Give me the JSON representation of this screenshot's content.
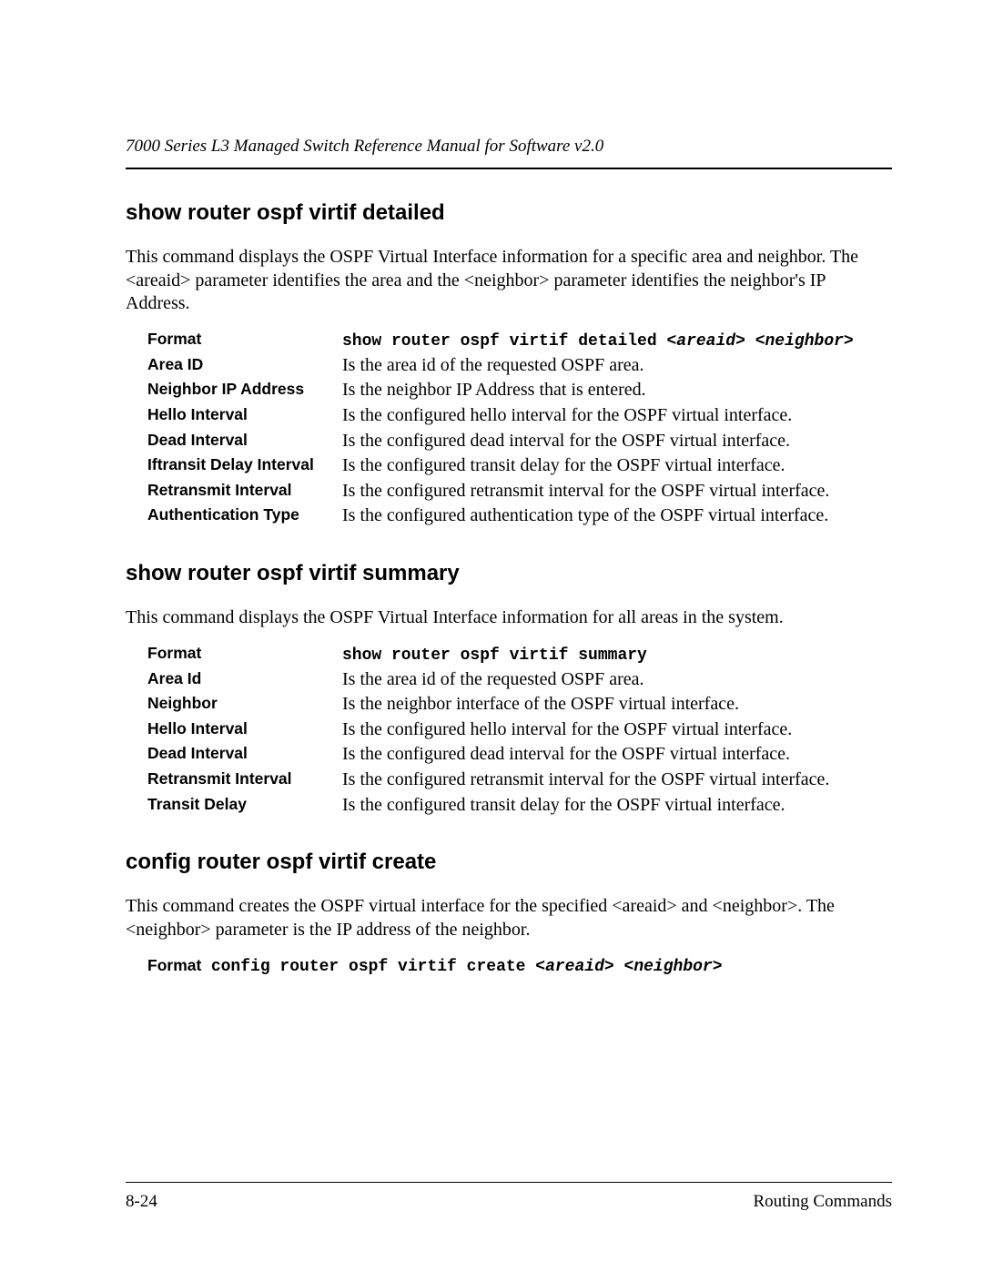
{
  "header": {
    "running_head": "7000 Series L3 Managed Switch Reference Manual for Software v2.0"
  },
  "sections": {
    "detailed": {
      "title": "show router ospf virtif detailed",
      "intro": "This command displays the OSPF Virtual Interface information for a specific area and neighbor. The <areaid> parameter identifies the area and the <neighbor> parameter identifies the neighbor's IP Address.",
      "rows": {
        "format_label": "Format",
        "format_cmd": "show router ospf virtif detailed ",
        "format_arg1": "<areaid>",
        "format_arg2": "<neighbor>",
        "area_id_label": "Area ID",
        "area_id_value": "Is the area id of the requested OSPF area.",
        "neighbor_ip_label": "Neighbor IP Address",
        "neighbor_ip_value": "Is the neighbor IP Address that is entered.",
        "hello_label": "Hello Interval",
        "hello_value": "Is the configured hello interval for the OSPF virtual interface.",
        "dead_label": "Dead Interval",
        "dead_value": "Is the configured dead interval for the OSPF virtual interface.",
        "iftransit_label": "Iftransit Delay Interval",
        "iftransit_value": "Is the configured transit delay for the OSPF virtual interface.",
        "retransmit_label": "Retransmit Interval",
        "retransmit_value": "Is the configured retransmit interval for the OSPF virtual interface.",
        "auth_label": "Authentication Type",
        "auth_value": "Is the configured authentication type of the OSPF virtual interface."
      }
    },
    "summary": {
      "title": "show router ospf virtif summary",
      "intro": "This command displays the OSPF Virtual Interface information for all areas in the system.",
      "rows": {
        "format_label": "Format",
        "format_cmd": "show router ospf virtif summary",
        "area_id_label": "Area Id",
        "area_id_value": "Is the area id of the requested OSPF area.",
        "neighbor_label": "Neighbor",
        "neighbor_value": "Is the neighbor interface of the OSPF virtual interface.",
        "hello_label": "Hello Interval",
        "hello_value": "Is the configured hello interval for the OSPF virtual interface.",
        "dead_label": "Dead Interval",
        "dead_value": "Is the configured dead interval for the OSPF virtual interface.",
        "retransmit_label": "Retransmit Interval",
        "retransmit_value": "Is the configured retransmit interval for the OSPF virtual interface.",
        "transit_label": "Transit Delay",
        "transit_value": "Is the configured transit delay for the OSPF virtual interface."
      }
    },
    "create": {
      "title": "config router ospf virtif create",
      "intro": "This command creates the OSPF virtual interface for the specified <areaid> and <neighbor>. The <neighbor> parameter is the IP address of the neighbor.",
      "format_label": "Format",
      "format_cmd": "config router ospf virtif create ",
      "format_arg1": "<areaid>",
      "format_arg2": "<neighbor>"
    }
  },
  "footer": {
    "page_number": "8-24",
    "chapter": "Routing Commands"
  }
}
